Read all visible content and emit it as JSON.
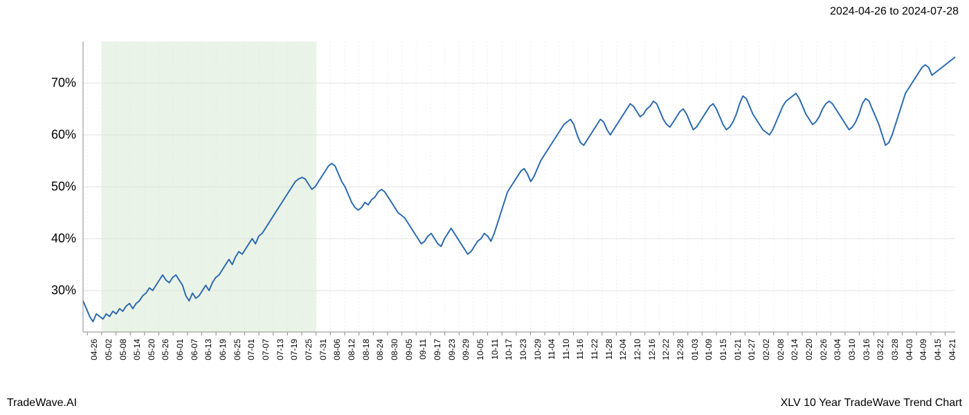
{
  "header": {
    "date_range": "2024-04-26 to 2024-07-28"
  },
  "footer": {
    "brand": "TradeWave.AI",
    "title": "XLV 10 Year TradeWave Trend Chart"
  },
  "chart": {
    "type": "line",
    "background_color": "#ffffff",
    "plot_border_color": "#cccccc",
    "grid_color_major": "#e0e0e0",
    "grid_color_minor": "#eeeeee",
    "line_color": "#2868b0",
    "line_width": 2,
    "highlight_fill": "#d9ead3",
    "highlight_opacity": 0.55,
    "highlight_start_index": 1,
    "highlight_end_index": 16,
    "ylim": [
      22,
      78
    ],
    "y_ticks": [
      30,
      40,
      50,
      60,
      70
    ],
    "y_tick_labels": [
      "30%",
      "40%",
      "50%",
      "60%",
      "70%"
    ],
    "y_label_fontsize": 18,
    "x_label_fontsize": 12,
    "x_labels": [
      "04-26",
      "05-02",
      "05-08",
      "05-14",
      "05-20",
      "05-26",
      "06-01",
      "06-07",
      "06-13",
      "06-19",
      "06-25",
      "07-01",
      "07-07",
      "07-13",
      "07-19",
      "07-25",
      "07-31",
      "08-06",
      "08-12",
      "08-18",
      "08-24",
      "08-30",
      "09-05",
      "09-11",
      "09-17",
      "09-23",
      "09-29",
      "10-05",
      "10-11",
      "10-17",
      "10-23",
      "10-29",
      "11-04",
      "11-10",
      "11-16",
      "11-22",
      "11-28",
      "12-04",
      "12-10",
      "12-16",
      "12-22",
      "12-28",
      "01-03",
      "01-09",
      "01-15",
      "01-21",
      "01-27",
      "02-02",
      "02-08",
      "02-14",
      "02-20",
      "02-26",
      "03-04",
      "03-10",
      "03-16",
      "03-22",
      "03-28",
      "04-03",
      "04-09",
      "04-15",
      "04-21"
    ],
    "values": [
      28,
      26.5,
      25,
      24,
      25.5,
      25,
      24.5,
      25.5,
      25,
      26,
      25.5,
      26.5,
      26,
      27,
      27.5,
      26.5,
      27.5,
      28,
      29,
      29.5,
      30.5,
      30,
      31,
      32,
      33,
      32,
      31.5,
      32.5,
      33,
      32,
      31,
      29,
      28,
      29.5,
      28.5,
      29,
      30,
      31,
      30,
      31.5,
      32.5,
      33,
      34,
      35,
      36,
      35,
      36.5,
      37.5,
      37,
      38,
      39,
      40,
      39,
      40.5,
      41,
      42,
      43,
      44,
      45,
      46,
      47,
      48,
      49,
      50,
      51,
      51.5,
      51.8,
      51.5,
      50.5,
      49.5,
      50,
      51,
      52,
      53,
      54,
      54.5,
      54,
      52.5,
      51,
      50,
      48.5,
      47,
      46,
      45.5,
      46,
      47,
      46.5,
      47.5,
      48,
      49,
      49.5,
      49,
      48,
      47,
      46,
      45,
      44.5,
      44,
      43,
      42,
      41,
      40,
      39,
      39.5,
      40.5,
      41,
      40,
      39,
      38.5,
      40,
      41,
      42,
      41,
      40,
      39,
      38,
      37,
      37.5,
      38.5,
      39.5,
      40,
      41,
      40.5,
      39.5,
      41,
      43,
      45,
      47,
      49,
      50,
      51,
      52,
      53,
      53.5,
      52.5,
      51,
      52,
      53.5,
      55,
      56,
      57,
      58,
      59,
      60,
      61,
      62,
      62.5,
      63,
      62,
      60,
      58.5,
      58,
      59,
      60,
      61,
      62,
      63,
      62.5,
      61,
      60,
      61,
      62,
      63,
      64,
      65,
      66,
      65.5,
      64.5,
      63.5,
      64,
      65,
      65.5,
      66.5,
      66,
      64.5,
      63,
      62,
      61.5,
      62.5,
      63.5,
      64.5,
      65,
      64,
      62.5,
      61,
      61.5,
      62.5,
      63.5,
      64.5,
      65.5,
      66,
      65,
      63.5,
      62,
      61,
      61.5,
      62.5,
      64,
      66,
      67.5,
      67,
      65.5,
      64,
      63,
      62,
      61,
      60.5,
      60,
      61,
      62.5,
      64,
      65.5,
      66.5,
      67,
      67.5,
      68,
      67,
      65.5,
      64,
      63,
      62,
      62.5,
      63.5,
      65,
      66,
      66.5,
      66,
      65,
      64,
      63,
      62,
      61,
      61.5,
      62.5,
      64,
      66,
      67,
      66.5,
      65,
      63.5,
      62,
      60,
      58,
      58.5,
      60,
      62,
      64,
      66,
      68,
      69,
      70,
      71,
      72,
      73,
      73.5,
      73,
      71.5,
      72,
      72.5,
      73,
      73.5,
      74,
      74.5,
      75
    ]
  }
}
